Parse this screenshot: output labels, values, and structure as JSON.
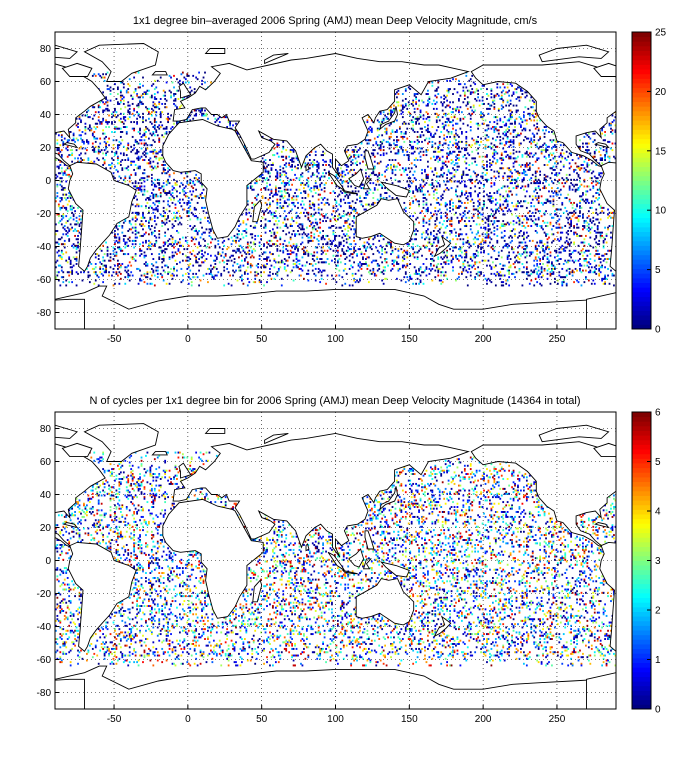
{
  "panels": [
    {
      "title": "1x1 degree bin–averaged 2006 Spring (AMJ) mean Deep Velocity Magnitude, cm/s",
      "colorbar": {
        "min": 0,
        "max": 25,
        "ticks": [
          "0",
          "5",
          "10",
          "15",
          "20",
          "25"
        ]
      },
      "dot_density": 0.42,
      "value_range": [
        0,
        25
      ],
      "value_skew": 0.55
    },
    {
      "title": "N of cycles per 1x1 degree bin for 2006 Spring (AMJ) mean Deep Velocity Magnitude (14364 in total)",
      "colorbar": {
        "min": 0,
        "max": 6,
        "ticks": [
          "0",
          "1",
          "2",
          "3",
          "4",
          "5",
          "6"
        ]
      },
      "dot_density": 0.42,
      "value_range": [
        0,
        6
      ],
      "value_skew": 0.35
    }
  ],
  "map": {
    "xlim": [
      -90,
      290
    ],
    "ylim": [
      -90,
      90
    ],
    "x_ticks": [
      "-50",
      "0",
      "50",
      "100",
      "150",
      "200",
      "250"
    ],
    "y_ticks": [
      "80",
      "60",
      "40",
      "20",
      "0",
      "-20",
      "-40",
      "-60",
      "-80"
    ],
    "grid": "dotted",
    "colormap": "jet"
  }
}
